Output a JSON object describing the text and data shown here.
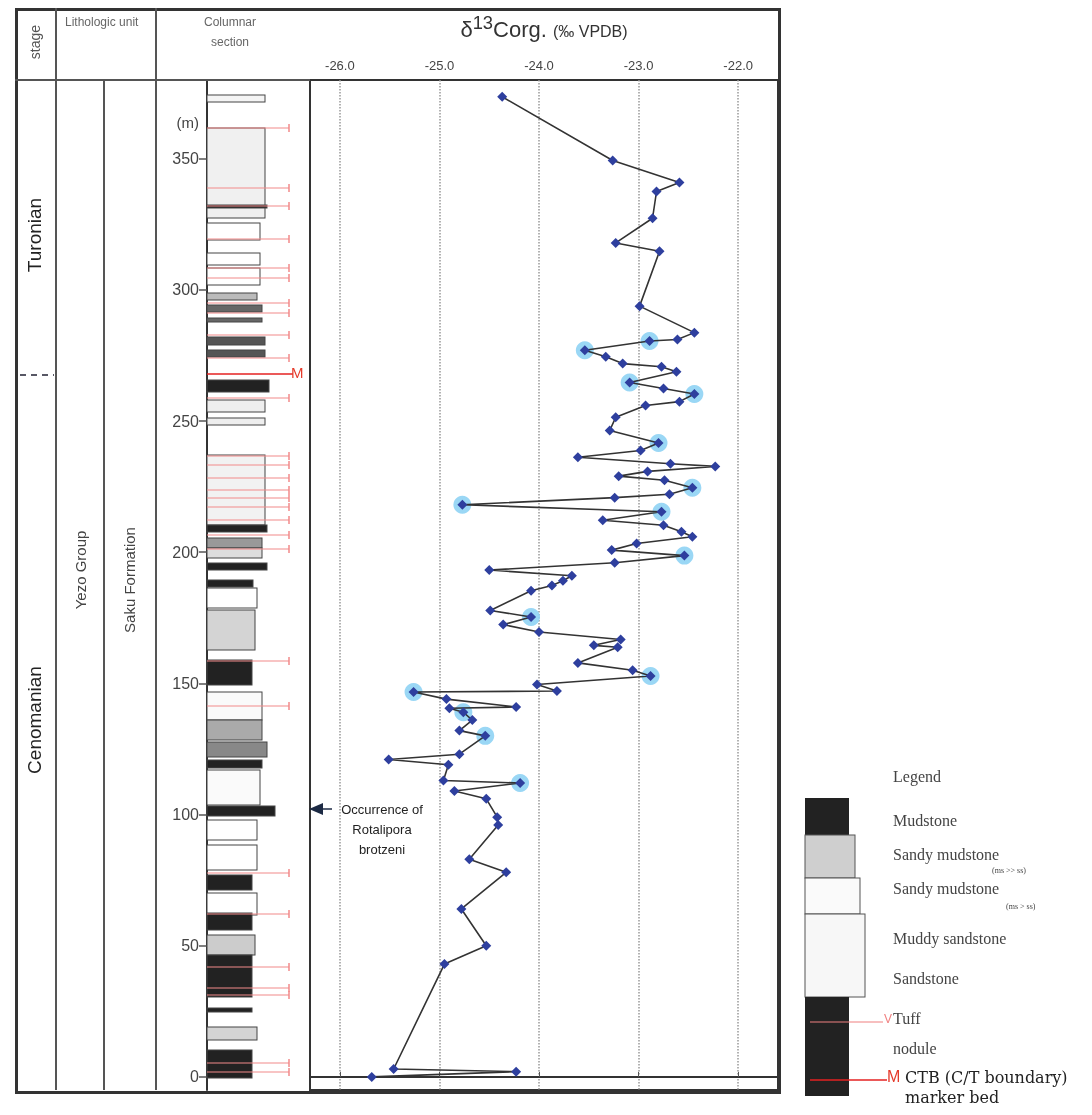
{
  "chart_data": {
    "type": "line",
    "xlabel": "δ$^{13}$Corg. (‰ VPDB)",
    "ylabel": "(m)",
    "xlim": [
      -26.3,
      -21.6
    ],
    "xticks": [
      {
        "value": -26,
        "label": "-26.0"
      },
      {
        "value": -25,
        "label": "-25.0"
      },
      {
        "value": -24,
        "label": "-24.0"
      },
      {
        "value": -23,
        "label": "-23.0"
      },
      {
        "value": -22,
        "label": "-22.0"
      }
    ],
    "ylim": [
      -5,
      380
    ],
    "yticks": [
      0,
      50,
      100,
      150,
      200,
      250,
      300,
      350
    ],
    "grid": "x",
    "marker": "diamond",
    "line_style": "solid",
    "series": [
      {
        "type": "scatter",
        "marker": "circle",
        "color": "#8fd3f4",
        "x": [
          -22.89,
          -23.54,
          -23.09,
          -22.44,
          -22.8,
          -22.46,
          -24.77,
          -22.77,
          -22.54,
          -24.08,
          -22.88,
          -25.26,
          -24.76,
          -24.54,
          -24.19
        ],
        "values": [
          280.5,
          277,
          264.7,
          260.3,
          241.6,
          224.6,
          218.1,
          215.4,
          198.7,
          175.3,
          152.8,
          146.7,
          139,
          130,
          112
        ]
      },
      {
        "color": "#2e3f9e",
        "x": [
          -25.68,
          -24.23,
          -25.46,
          -24.95,
          -24.53,
          -24.78,
          -24.33,
          -24.7,
          -24.41,
          -24.42,
          -24.53,
          -24.85,
          -24.19,
          -24.96,
          -24.91,
          -25.51,
          -24.8,
          -24.54,
          -24.8,
          -24.67,
          -24.76,
          -24.9,
          -24.23,
          -24.93,
          -25.26,
          -23.82,
          -24.02,
          -22.88,
          -23.06,
          -23.61,
          -23.21,
          -23.45,
          -23.18,
          -24.0,
          -24.36,
          -24.08,
          -24.49,
          -24.08,
          -23.87,
          -23.76,
          -23.67,
          -24.5,
          -23.24,
          -22.54,
          -23.27,
          -23.02,
          -22.46,
          -22.57,
          -22.75,
          -23.36,
          -22.77,
          -24.77,
          -23.24,
          -22.69,
          -22.46,
          -22.74,
          -23.2,
          -22.91,
          -22.23,
          -22.68,
          -23.61,
          -22.98,
          -22.8,
          -23.29,
          -23.23,
          -22.93,
          -22.59,
          -22.44,
          -22.75,
          -23.09,
          -22.62,
          -22.77,
          -23.16,
          -23.33,
          -23.54,
          -22.89,
          -22.61,
          -22.44,
          -22.99,
          -22.79,
          -23.23,
          -22.86,
          -22.82,
          -22.59,
          -23.26,
          -24.37
        ],
        "values": [
          0,
          2,
          3,
          43,
          50,
          64,
          78,
          83,
          96,
          99,
          106,
          109,
          112,
          113,
          119,
          121,
          123,
          130,
          132,
          136,
          139,
          140.5,
          141,
          144,
          146.7,
          147.1,
          149.6,
          152.8,
          155,
          157.8,
          163.8,
          164.5,
          166.7,
          169.6,
          172.4,
          175.3,
          177.8,
          185.3,
          187.3,
          189.1,
          191,
          193.2,
          196,
          198.7,
          200.8,
          203.3,
          205.9,
          207.8,
          210.3,
          212.2,
          215.4,
          218.1,
          220.8,
          222.1,
          224.6,
          227.4,
          229,
          230.8,
          232.7,
          233.7,
          236.2,
          238.8,
          241.6,
          246.4,
          251.4,
          255.9,
          257.4,
          260.3,
          262.4,
          264.7,
          268.8,
          270.7,
          271.9,
          274.5,
          277,
          280.5,
          281.1,
          283.7,
          293.8,
          314.7,
          317.9,
          327.3,
          337.5,
          340.9,
          349.3,
          373.6
        ]
      }
    ],
    "annotations": [
      "stage",
      "Lithologic unit",
      "Columnar section",
      "Turonian",
      "Cenomanian",
      "Yezo Group",
      "Saku Formation",
      "M",
      "Occurrence of Rotalipora brotzeni",
      "Legend",
      "Mudstone",
      "Sandy mudstone",
      "(ms >> ss)",
      "Sandy mudstone",
      "(ms > ss)",
      "Muddy sandstone",
      "Sandstone",
      "V",
      "Tuff",
      "nodule",
      "M",
      "CTB (C/T boundary) marker bed"
    ]
  }
}
